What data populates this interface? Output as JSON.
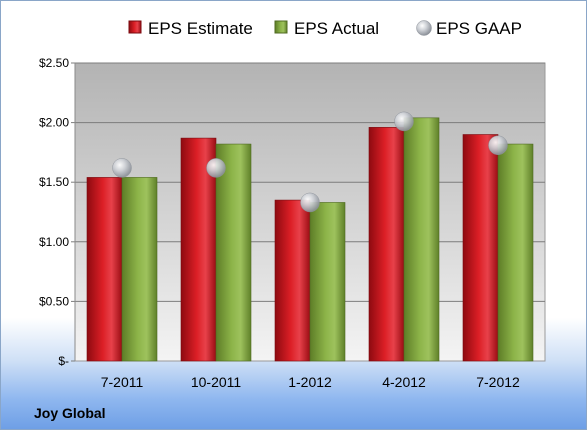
{
  "chart_data": {
    "type": "bar",
    "title": "Joy Global",
    "categories": [
      "7-2011",
      "10-2011",
      "1-2012",
      "4-2012",
      "7-2012"
    ],
    "series": [
      {
        "name": "EPS Estimate",
        "kind": "bar",
        "color": "#c8101a",
        "values": [
          1.54,
          1.87,
          1.35,
          1.96,
          1.9
        ]
      },
      {
        "name": "EPS Actual",
        "kind": "bar",
        "color": "#7fa33c",
        "values": [
          1.54,
          1.82,
          1.33,
          2.04,
          1.82
        ]
      },
      {
        "name": "EPS GAAP",
        "kind": "marker",
        "color": "#b8bcc4",
        "values": [
          1.62,
          1.62,
          1.33,
          2.01,
          1.81
        ]
      }
    ],
    "yticks": [
      "$-",
      "$0.50",
      "$1.00",
      "$1.50",
      "$2.00",
      "$2.50"
    ],
    "ylim": [
      0,
      2.5
    ],
    "grid": true,
    "legend_position": "top"
  }
}
